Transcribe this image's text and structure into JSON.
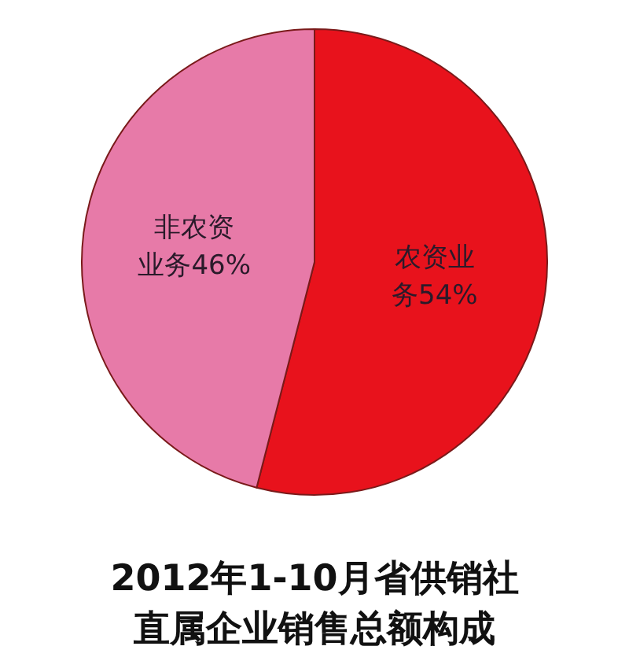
{
  "chart_data": {
    "type": "pie",
    "title": "2012年1-10月省供销社直属企业销售总额构成",
    "categories": [
      "农资业务",
      "非农资业务"
    ],
    "values": [
      54,
      46
    ],
    "value_labels": [
      "54%",
      "46%"
    ],
    "colors": [
      "#e8121c",
      "#e77aa8"
    ],
    "legend": false
  }
}
